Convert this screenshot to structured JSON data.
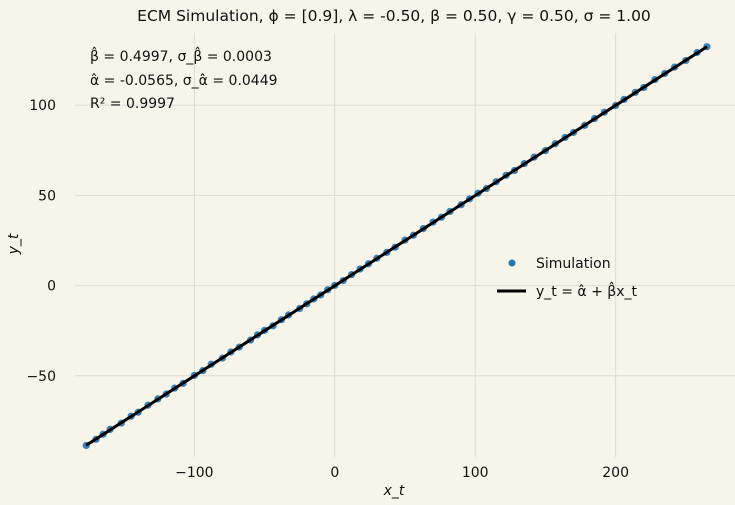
{
  "chart_data": {
    "type": "scatter",
    "title": "ECM Simulation, ϕ = [0.9], λ = -0.50, β = 0.50, γ = 0.50, σ = 1.00",
    "xlabel": "x_t",
    "ylabel": "y_t",
    "xlim": [
      -185,
      285
    ],
    "ylim": [
      -95,
      140
    ],
    "x_ticks": [
      -100,
      0,
      100,
      200
    ],
    "y_ticks": [
      -50,
      0,
      50,
      100
    ],
    "x_tick_labels": [
      "−100",
      "0",
      "100",
      "200"
    ],
    "y_tick_labels": [
      "−50",
      "0",
      "50",
      "100"
    ],
    "grid": true,
    "legend_position": "center-right",
    "annotations": [
      "β̂ = 0.4997, σ_β̂ = 0.0003",
      "α̂ = -0.0565, σ_α̂ = 0.0449",
      "R² = 0.9997"
    ],
    "series": [
      {
        "name": "Simulation",
        "kind": "scatter",
        "color": "#1f77b4",
        "x": [
          -177,
          -170,
          -165,
          -160,
          -152,
          -145,
          -140,
          -133,
          -126,
          -120,
          -114,
          -108,
          -100,
          -94,
          -88,
          -80,
          -74,
          -68,
          -60,
          -55,
          -50,
          -44,
          -38,
          -33,
          -25,
          -20,
          -15,
          -10,
          -5,
          0,
          6,
          12,
          18,
          24,
          30,
          37,
          43,
          50,
          56,
          63,
          70,
          76,
          82,
          90,
          96,
          102,
          108,
          115,
          122,
          128,
          135,
          142,
          150,
          157,
          164,
          170,
          178,
          185,
          192,
          200,
          206,
          214,
          220,
          228,
          235,
          242,
          250,
          258,
          265
        ],
        "y": [
          -88.6,
          -85.2,
          -82.4,
          -79.7,
          -76.2,
          -72.4,
          -70.2,
          -66.3,
          -62.8,
          -60.1,
          -56.8,
          -54.2,
          -49.8,
          -47.1,
          -43.6,
          -40.2,
          -36.8,
          -34.1,
          -30.2,
          -27.3,
          -24.8,
          -22.3,
          -18.9,
          -16.3,
          -12.7,
          -10.1,
          -7.4,
          -5.2,
          -2.3,
          0.1,
          2.8,
          6.1,
          9.2,
          12.1,
          15.2,
          18.4,
          21.3,
          25.2,
          27.9,
          31.6,
          35.2,
          37.9,
          41.1,
          44.8,
          48.1,
          51.2,
          53.8,
          57.6,
          61.1,
          63.8,
          67.6,
          71.2,
          74.8,
          78.6,
          82.1,
          84.9,
          88.8,
          92.6,
          96.1,
          99.8,
          103.2,
          107.1,
          109.8,
          114.2,
          117.6,
          121.1,
          124.8,
          129.2,
          132.4
        ]
      },
      {
        "name": "y_t = α̂ + β̂x_t",
        "kind": "line",
        "color": "#000000",
        "intercept": -0.0565,
        "slope": 0.4997,
        "x_range": [
          -177,
          265
        ]
      }
    ]
  }
}
